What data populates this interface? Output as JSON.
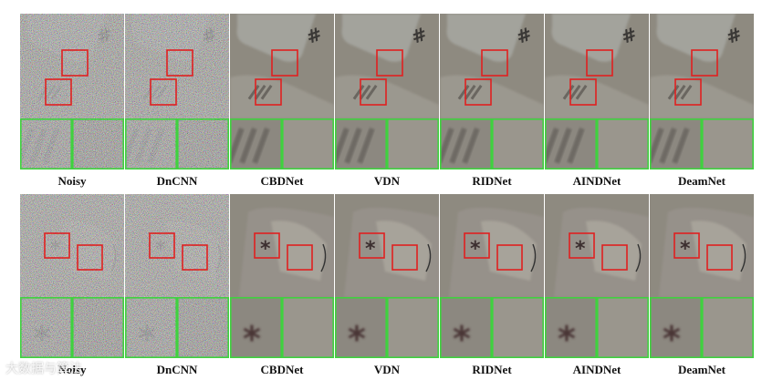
{
  "figure": {
    "methods": [
      "Noisy",
      "DnCNN",
      "CBDNet",
      "VDN",
      "RIDNet",
      "AINDNet",
      "DeamNet"
    ],
    "rows": [
      {
        "scene": "keyboard-key-hash",
        "symbol": "#"
      },
      {
        "scene": "keyboard-key-asterisk",
        "symbol": "*"
      }
    ],
    "colors": {
      "roi_box": "#e02020",
      "zoom_border": "#3fd23f",
      "clean_base": "#8e8a80",
      "noisy_base": "#7c7a70"
    },
    "watermark": "大数据与算法"
  }
}
